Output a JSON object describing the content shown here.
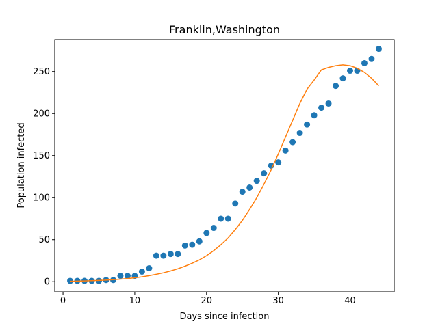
{
  "chart_data": {
    "type": "scatter",
    "title": "Franklin,Washington",
    "xlabel": "Days since infection",
    "ylabel": "Population infected",
    "xlim": [
      -1.15,
      46.15
    ],
    "ylim": [
      -12,
      288
    ],
    "xticks": [
      0,
      10,
      20,
      30,
      40
    ],
    "yticks": [
      0,
      50,
      100,
      150,
      200,
      250
    ],
    "grid": false,
    "series": [
      {
        "kind": "scatter",
        "color": "#1f77b4",
        "x": [
          1,
          2,
          3,
          4,
          5,
          6,
          7,
          8,
          9,
          10,
          11,
          12,
          13,
          14,
          15,
          16,
          17,
          18,
          19,
          20,
          21,
          22,
          23,
          24,
          25,
          26,
          27,
          28,
          29,
          30,
          31,
          32,
          33,
          34,
          35,
          36,
          37,
          38,
          39,
          40,
          41,
          42,
          43,
          44
        ],
        "y": [
          1,
          1,
          1,
          1,
          1,
          2,
          2,
          7,
          7,
          7,
          12,
          16,
          31,
          31,
          33,
          33,
          43,
          44,
          48,
          58,
          64,
          75,
          75,
          93,
          107,
          112,
          120,
          129,
          138,
          142,
          156,
          166,
          177,
          187,
          198,
          207,
          212,
          233,
          242,
          251,
          251,
          260,
          265,
          277
        ]
      },
      {
        "kind": "line",
        "color": "#ff7f0e",
        "x": [
          1,
          2,
          3,
          4,
          5,
          6,
          7,
          8,
          9,
          10,
          11,
          12,
          13,
          14,
          15,
          16,
          17,
          18,
          19,
          20,
          21,
          22,
          23,
          24,
          25,
          26,
          27,
          28,
          29,
          30,
          31,
          32,
          33,
          34,
          35,
          36,
          37,
          38,
          39,
          40,
          41,
          42,
          43,
          44
        ],
        "y": [
          0.5,
          0.7,
          0.9,
          1.2,
          1.5,
          1.9,
          2.4,
          3,
          3.8,
          4.7,
          5.8,
          7.2,
          8.8,
          10.6,
          12.8,
          15.4,
          18.5,
          22,
          26,
          31,
          37,
          44,
          52,
          62,
          73,
          86,
          100,
          116,
          133,
          152,
          172,
          192,
          212,
          229,
          240,
          252,
          255,
          257,
          258,
          257,
          254,
          249,
          242,
          233
        ]
      }
    ]
  }
}
